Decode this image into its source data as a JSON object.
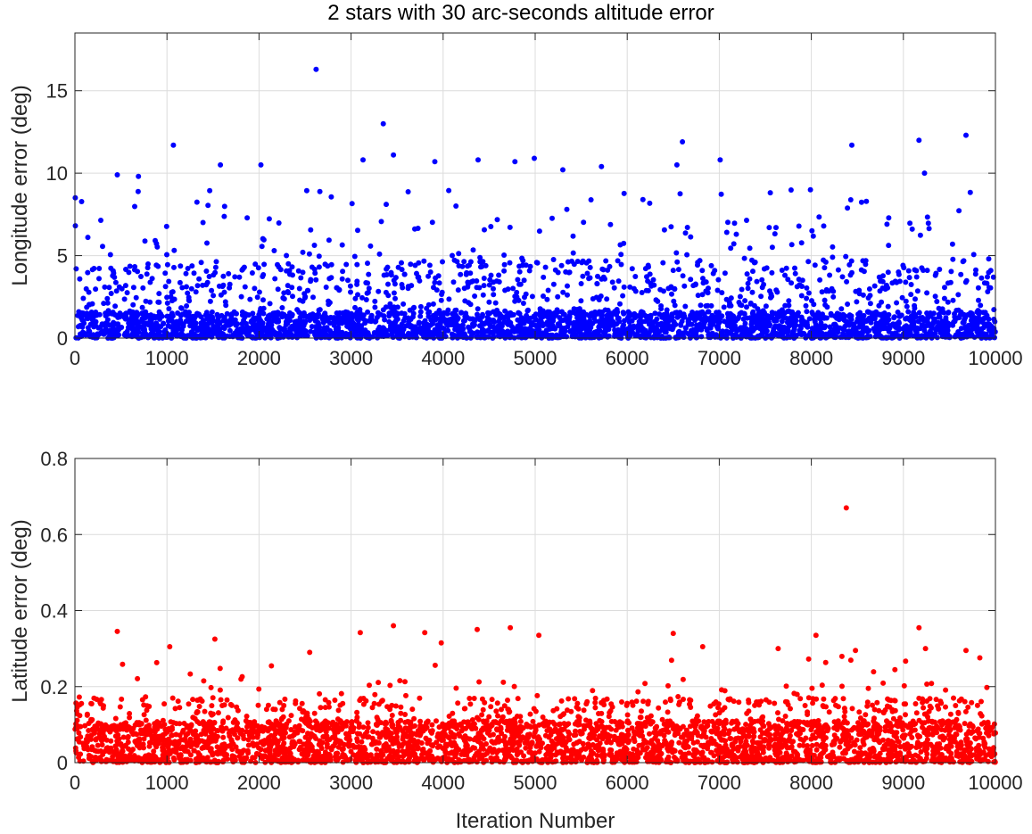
{
  "chart_data": {
    "title": "2 stars with 30 arc-seconds altitude error",
    "charts": [
      {
        "type": "scatter",
        "ylabel": "Longitude error (deg)",
        "xlabel": "",
        "xlim": [
          0,
          10000
        ],
        "ylim": [
          0,
          18.5
        ],
        "xticks": [
          0,
          1000,
          2000,
          3000,
          4000,
          5000,
          6000,
          7000,
          8000,
          9000,
          10000
        ],
        "yticks": [
          0,
          5,
          10,
          15
        ],
        "grid": true,
        "color": "#0000ff",
        "n_points": 10000,
        "notable_points": [
          {
            "x": 2620,
            "y": 16.3
          },
          {
            "x": 3350,
            "y": 13.0
          },
          {
            "x": 1070,
            "y": 11.7
          },
          {
            "x": 6600,
            "y": 11.9
          },
          {
            "x": 8440,
            "y": 11.7
          },
          {
            "x": 9170,
            "y": 12.0
          },
          {
            "x": 9680,
            "y": 12.3
          },
          {
            "x": 3460,
            "y": 11.1
          },
          {
            "x": 4990,
            "y": 10.9
          },
          {
            "x": 3130,
            "y": 10.8
          },
          {
            "x": 7010,
            "y": 10.8
          },
          {
            "x": 4380,
            "y": 10.8
          },
          {
            "x": 4780,
            "y": 10.7
          },
          {
            "x": 3910,
            "y": 10.7
          },
          {
            "x": 1580,
            "y": 10.5
          },
          {
            "x": 2020,
            "y": 10.5
          },
          {
            "x": 5720,
            "y": 10.4
          },
          {
            "x": 6540,
            "y": 10.5
          },
          {
            "x": 5300,
            "y": 10.2
          },
          {
            "x": 9230,
            "y": 10.0
          },
          {
            "x": 460,
            "y": 9.9
          },
          {
            "x": 690,
            "y": 9.8
          }
        ]
      },
      {
        "type": "scatter",
        "ylabel": "Latitude error (deg)",
        "xlabel": "Iteration Number",
        "xlim": [
          0,
          10000
        ],
        "ylim": [
          0,
          0.8
        ],
        "xticks": [
          0,
          1000,
          2000,
          3000,
          4000,
          5000,
          6000,
          7000,
          8000,
          9000,
          10000
        ],
        "yticks": [
          0,
          0.2,
          0.4,
          0.6,
          0.8
        ],
        "grid": true,
        "color": "#ff0000",
        "n_points": 10000,
        "notable_points": [
          {
            "x": 8380,
            "y": 0.67
          },
          {
            "x": 3460,
            "y": 0.36
          },
          {
            "x": 4730,
            "y": 0.355
          },
          {
            "x": 9170,
            "y": 0.355
          },
          {
            "x": 460,
            "y": 0.345
          },
          {
            "x": 3800,
            "y": 0.342
          },
          {
            "x": 3100,
            "y": 0.342
          },
          {
            "x": 4370,
            "y": 0.35
          },
          {
            "x": 6500,
            "y": 0.34
          },
          {
            "x": 5040,
            "y": 0.335
          },
          {
            "x": 8050,
            "y": 0.335
          },
          {
            "x": 1520,
            "y": 0.325
          },
          {
            "x": 3980,
            "y": 0.315
          },
          {
            "x": 1030,
            "y": 0.305
          },
          {
            "x": 6820,
            "y": 0.305
          },
          {
            "x": 7640,
            "y": 0.3
          },
          {
            "x": 9240,
            "y": 0.3
          },
          {
            "x": 9680,
            "y": 0.295
          },
          {
            "x": 8480,
            "y": 0.295
          },
          {
            "x": 2550,
            "y": 0.29
          }
        ]
      }
    ]
  }
}
